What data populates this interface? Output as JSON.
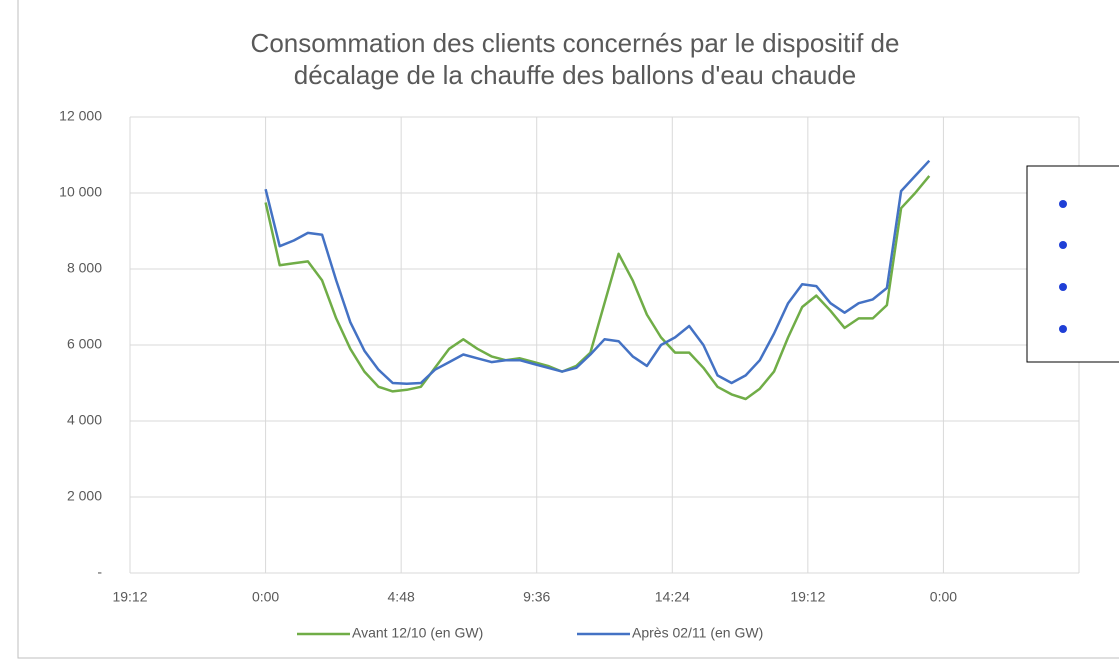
{
  "chart_data": {
    "type": "line",
    "title": [
      "Consommation des clients concernés par le dispositif de",
      "décalage de la chauffe des ballons d'eau chaude"
    ],
    "x": [
      0,
      0.5,
      1,
      1.5,
      2,
      2.5,
      3,
      3.5,
      4,
      4.5,
      5,
      5.5,
      6,
      6.5,
      7,
      7.5,
      8,
      8.5,
      9,
      9.5,
      10,
      10.5,
      11,
      11.5,
      12,
      12.5,
      13,
      13.5,
      14,
      14.5,
      15,
      15.5,
      16,
      16.5,
      17,
      17.5,
      18,
      18.5,
      19,
      19.5,
      20,
      20.5,
      21,
      21.5,
      22,
      22.5,
      23,
      23.5
    ],
    "series": [
      {
        "name": "Avant 12/10 (en GW)",
        "color": "#70ad47",
        "values": [
          9750,
          8100,
          8150,
          8200,
          7700,
          6700,
          5900,
          5300,
          4900,
          4780,
          4820,
          4900,
          5400,
          5900,
          6150,
          5900,
          5700,
          5600,
          5650,
          5550,
          5450,
          5300,
          5450,
          5800,
          7100,
          8400,
          7700,
          6800,
          6200,
          5800,
          5800,
          5400,
          4900,
          4700,
          4580,
          4850,
          5300,
          6200,
          7000,
          7300,
          6900,
          6450,
          6700,
          6700,
          7050,
          9600,
          10000,
          10450
        ]
      },
      {
        "name": "Après 02/11 (en GW)",
        "color": "#4472c4",
        "values": [
          10100,
          8600,
          8750,
          8950,
          8900,
          7700,
          6600,
          5850,
          5350,
          5000,
          4980,
          5000,
          5350,
          5550,
          5750,
          5650,
          5550,
          5600,
          5600,
          5500,
          5400,
          5300,
          5400,
          5750,
          6150,
          6100,
          5700,
          5450,
          6000,
          6200,
          6500,
          6000,
          5200,
          5000,
          5200,
          5600,
          6300,
          7100,
          7600,
          7550,
          7100,
          6850,
          7100,
          7200,
          7500,
          10050,
          10450,
          10850
        ]
      }
    ],
    "xlim": [
      -4.8,
      28.8
    ],
    "xticks": [
      {
        "value": -4.8,
        "label": "19:12"
      },
      {
        "value": 0,
        "label": "0:00"
      },
      {
        "value": 4.8,
        "label": "4:48"
      },
      {
        "value": 9.6,
        "label": "9:36"
      },
      {
        "value": 14.4,
        "label": "14:24"
      },
      {
        "value": 19.2,
        "label": "19:12"
      },
      {
        "value": 24,
        "label": "0:00"
      }
    ],
    "ylim": [
      0,
      12000
    ],
    "yticks": [
      {
        "value": 0,
        "label": "-"
      },
      {
        "value": 2000,
        "label": "2 000"
      },
      {
        "value": 4000,
        "label": "4 000"
      },
      {
        "value": 6000,
        "label": "6 000"
      },
      {
        "value": 8000,
        "label": "8 000"
      },
      {
        "value": 10000,
        "label": "10 000"
      },
      {
        "value": 12000,
        "label": "12 000"
      }
    ],
    "grid": true
  }
}
